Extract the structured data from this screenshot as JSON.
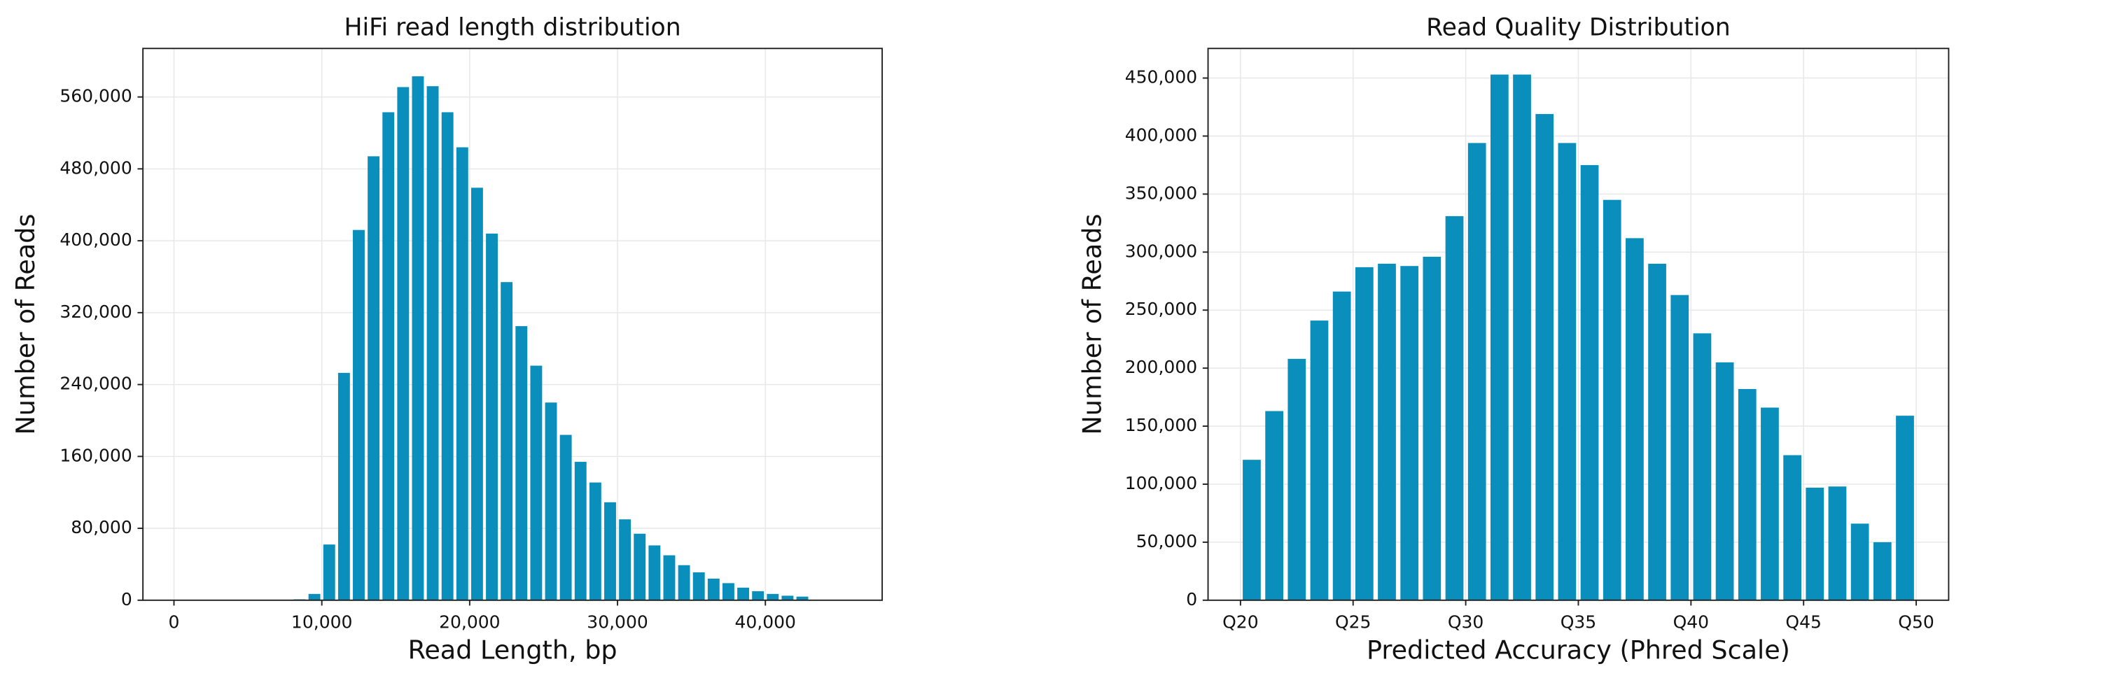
{
  "chart_data": [
    {
      "type": "histogram",
      "title": "HiFi read length distribution",
      "x_label": "Read Length, bp",
      "y_label": "Number of Reads",
      "color": "#0a8fbd",
      "grid": true,
      "bins": [
        8000,
        9000,
        10000,
        11000,
        12000,
        13000,
        14000,
        15000,
        16000,
        17000,
        18000,
        19000,
        20000,
        21000,
        22000,
        23000,
        24000,
        25000,
        26000,
        27000,
        28000,
        29000,
        30000,
        31000,
        32000,
        33000,
        34000,
        35000,
        36000,
        37000,
        38000,
        39000,
        40000,
        41000,
        42000,
        43000
      ],
      "counts": [
        1000,
        7000,
        62000,
        253000,
        412000,
        494000,
        543000,
        571000,
        583000,
        572000,
        543000,
        504000,
        459000,
        408000,
        354000,
        305000,
        261000,
        220000,
        184000,
        154000,
        131000,
        109000,
        90000,
        74000,
        61000,
        50000,
        39000,
        31000,
        24000,
        19000,
        14000,
        10000,
        7000,
        5000,
        4000
      ],
      "xlim": [
        -2100,
        47900
      ],
      "xticks": [
        0,
        {
          "value": 10000,
          "label": "10,000"
        },
        {
          "value": 20000,
          "label": "20,000"
        },
        {
          "value": 30000,
          "label": "30,000"
        },
        {
          "value": 40000,
          "label": "40,000"
        }
      ],
      "ylim": [
        0,
        614000
      ],
      "yticks": [
        0,
        {
          "value": 80000,
          "label": "80,000"
        },
        {
          "value": 160000,
          "label": "160,000"
        },
        {
          "value": 240000,
          "label": "240,000"
        },
        {
          "value": 320000,
          "label": "320,000"
        },
        {
          "value": 400000,
          "label": "400,000"
        },
        {
          "value": 480000,
          "label": "480,000"
        },
        {
          "value": 560000,
          "label": "560,000"
        }
      ]
    },
    {
      "type": "histogram",
      "title": "Read Quality Distribution",
      "x_label": "Predicted Accuracy (Phred Scale)",
      "y_label": "Number of Reads",
      "color": "#0a8fbd",
      "grid": true,
      "bins": [
        20,
        21,
        22,
        23,
        24,
        25,
        26,
        27,
        28,
        29,
        30,
        31,
        32,
        33,
        34,
        35,
        36,
        37,
        38,
        39,
        40,
        41,
        42,
        43,
        44,
        45,
        46,
        47,
        48,
        49,
        50
      ],
      "counts": [
        121000,
        163000,
        208000,
        241000,
        266000,
        287000,
        290000,
        288000,
        296000,
        331000,
        394000,
        453000,
        453000,
        419000,
        394000,
        375000,
        345000,
        312000,
        290000,
        263000,
        230000,
        205000,
        182000,
        166000,
        125000,
        97000,
        98000,
        66000,
        50000,
        159000
      ],
      "xlim": [
        18.56,
        51.44
      ],
      "xticks": [
        {
          "value": 20,
          "label": "Q20"
        },
        {
          "value": 25,
          "label": "Q25"
        },
        {
          "value": 30,
          "label": "Q30"
        },
        {
          "value": 35,
          "label": "Q35"
        },
        {
          "value": 40,
          "label": "Q40"
        },
        {
          "value": 45,
          "label": "Q45"
        },
        {
          "value": 50,
          "label": "Q50"
        }
      ],
      "ylim": [
        0,
        475500
      ],
      "yticks": [
        0,
        {
          "value": 50000,
          "label": "50,000"
        },
        {
          "value": 100000,
          "label": "100,000"
        },
        {
          "value": 150000,
          "label": "150,000"
        },
        {
          "value": 200000,
          "label": "200,000"
        },
        {
          "value": 250000,
          "label": "250,000"
        },
        {
          "value": 300000,
          "label": "300,000"
        },
        {
          "value": 350000,
          "label": "350,000"
        },
        {
          "value": 400000,
          "label": "400,000"
        },
        {
          "value": 450000,
          "label": "450,000"
        }
      ]
    }
  ]
}
